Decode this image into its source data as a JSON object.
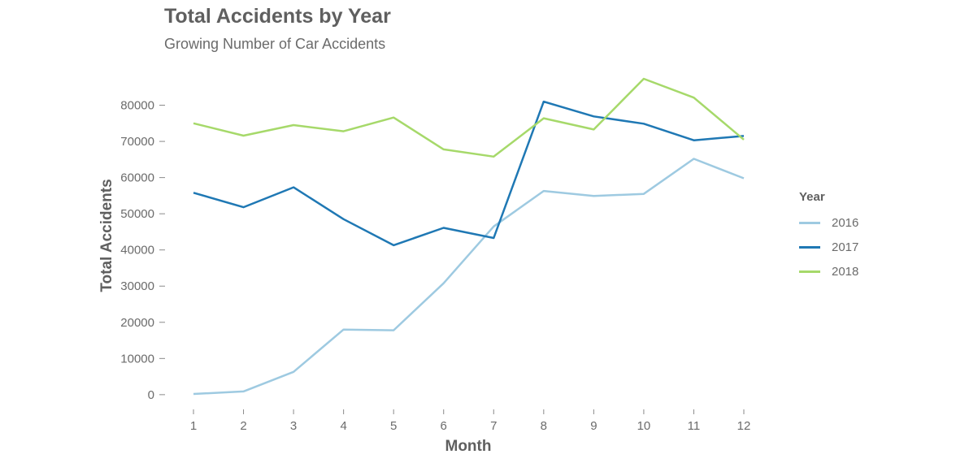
{
  "chart_data": {
    "type": "line",
    "title": "Total Accidents by Year",
    "subtitle": "Growing Number of Car Accidents",
    "xlabel": "Month",
    "ylabel": "Total Accidents",
    "x": [
      1,
      2,
      3,
      4,
      5,
      6,
      7,
      8,
      9,
      10,
      11,
      12
    ],
    "x_tick_labels": [
      "1",
      "2",
      "3",
      "4",
      "5",
      "6",
      "7",
      "8",
      "9",
      "10",
      "11",
      "12"
    ],
    "y_ticks": [
      0,
      10000,
      20000,
      30000,
      40000,
      50000,
      60000,
      70000,
      80000
    ],
    "y_tick_labels": [
      "0",
      "10000",
      "20000",
      "30000",
      "40000",
      "50000",
      "60000",
      "70000",
      "80000"
    ],
    "ylim": [
      -2500,
      90000
    ],
    "grid": false,
    "legend": {
      "title": "Year",
      "placement": "right"
    },
    "series": [
      {
        "name": "2016",
        "color": "#9ecae1",
        "values": [
          200,
          900,
          6300,
          18000,
          17800,
          30800,
          46500,
          56300,
          54900,
          55500,
          65200,
          59800
        ]
      },
      {
        "name": "2017",
        "color": "#1f78b4",
        "values": [
          55800,
          51800,
          57300,
          48500,
          41300,
          46100,
          43300,
          81000,
          76900,
          74900,
          70300,
          71500
        ]
      },
      {
        "name": "2018",
        "color": "#a6d96a",
        "values": [
          75000,
          71600,
          74500,
          72800,
          76600,
          67800,
          65800,
          76400,
          73300,
          87300,
          82100,
          70500
        ]
      }
    ]
  }
}
